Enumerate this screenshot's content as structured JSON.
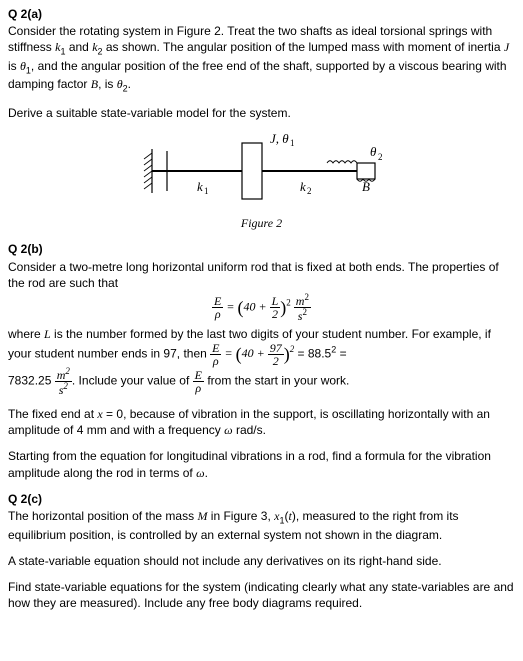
{
  "q2a": {
    "heading": "Q 2(a)",
    "body_html": "Consider the rotating system in Figure 2. Treat the two shafts as ideal torsional springs with stiffness <span class='ital'>k</span><span class='sub'>1</span> and <span class='ital'>k</span><span class='sub'>2</span> as shown. The angular position of the lumped mass with moment of inertia <span class='ital'>J</span> is <span class='ital'>θ</span><span class='sub'>1</span>, and the angular position of the free end of the shaft, supported by a viscous bearing with damping factor <span class='ital'>B</span>, is <span class='ital'>θ</span><span class='sub'>2</span>.",
    "derive": "Derive a suitable state-variable model for the system.",
    "figure_caption": "Figure 2",
    "labels": {
      "Jtheta1": "J, θ",
      "theta2": "θ",
      "k1": "k",
      "k2": "k",
      "B": "B",
      "one": "1",
      "two": "2"
    }
  },
  "q2b": {
    "heading": "Q 2(b)",
    "body1": "Consider a two-metre long horizontal uniform rod that is fixed at both ends. The properties of the rod are such that",
    "body2_html": "where <span class='ital'>L</span> is the number formed by the last two digits of your student number. For example, if your student number ends in 97, then <span class='inline-eq'><span class='frac'><span class='num'>E</span><span class='den'>ρ</span></span> = <span class='paren-big'>(</span>40 + <span class='frac'><span class='num'>97</span><span class='den'>2</span></span><span class='paren-big'>)</span><span class='sup'>2</span></span> = 88.5<span class='sup'>2</span> =",
    "body3_html": "7832.25 <span class='inline-eq'><span class='frac'><span class='num'>m<span class=\"sup\">2</span></span><span class='den'>s<span class=\"sup\">2</span></span></span></span>. Include your value of <span class='inline-eq'><span class='frac'><span class='num'>E</span><span class='den'>ρ</span></span></span> from the start in your work.",
    "body4_html": "The fixed end at <span class='ital'>x</span> = 0, because of vibration in the support, is oscillating horizontally with an amplitude of 4 mm and with a frequency <span class='ital'>ω</span> rad/s.",
    "body5_html": "Starting from the equation for longitudinal vibrations in a rod, find a formula for the vibration amplitude along the rod in terms of <span class='ital'>ω</span>."
  },
  "q2c": {
    "heading": "Q 2(c)",
    "body1_html": "The horizontal position of the mass <span class='ital'>M</span> in Figure 3, <span class='ital'>x</span><span class='sub'>1</span>(<span class='ital'>t</span>), measured to the right from its equilibrium position, is controlled by an external system not shown in the diagram.",
    "body2": "A state-variable equation should not include any derivatives on its right-hand side.",
    "body3": "Find state-variable equations for the system (indicating clearly what any state-variables are and how they are measured). Include any free body diagrams required."
  },
  "colors": {
    "text": "#000000",
    "bg": "#ffffff",
    "line": "#000000",
    "fill": "#ffffff",
    "hatch": "#000000"
  }
}
